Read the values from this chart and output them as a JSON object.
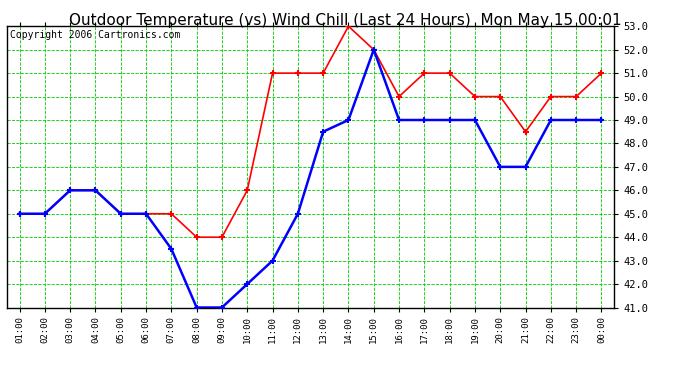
{
  "title": "Outdoor Temperature (vs) Wind Chill (Last 24 Hours)  Mon May 15 00:01",
  "copyright": "Copyright 2006 Cartronics.com",
  "x_labels": [
    "01:00",
    "02:00",
    "03:00",
    "04:00",
    "05:00",
    "06:00",
    "07:00",
    "08:00",
    "09:00",
    "10:00",
    "11:00",
    "12:00",
    "13:00",
    "14:00",
    "15:00",
    "16:00",
    "17:00",
    "18:00",
    "19:00",
    "20:00",
    "21:00",
    "22:00",
    "23:00",
    "00:00"
  ],
  "outdoor_temp": [
    45.0,
    45.0,
    46.0,
    46.0,
    45.0,
    45.0,
    45.0,
    44.0,
    44.0,
    46.0,
    51.0,
    51.0,
    51.0,
    53.0,
    52.0,
    50.0,
    51.0,
    51.0,
    50.0,
    50.0,
    48.5,
    50.0,
    50.0,
    51.0
  ],
  "wind_chill": [
    45.0,
    45.0,
    46.0,
    46.0,
    45.0,
    45.0,
    43.5,
    41.0,
    41.0,
    42.0,
    43.0,
    45.0,
    48.5,
    49.0,
    52.0,
    49.0,
    49.0,
    49.0,
    49.0,
    47.0,
    47.0,
    49.0,
    49.0,
    49.0
  ],
  "temp_color": "#ff0000",
  "chill_color": "#0000ff",
  "bg_color": "#ffffff",
  "plot_bg_color": "#ffffff",
  "grid_color": "#00cc00",
  "ylim_min": 41.0,
  "ylim_max": 53.0,
  "ytick_step": 1.0,
  "title_fontsize": 11,
  "copyright_fontsize": 7
}
